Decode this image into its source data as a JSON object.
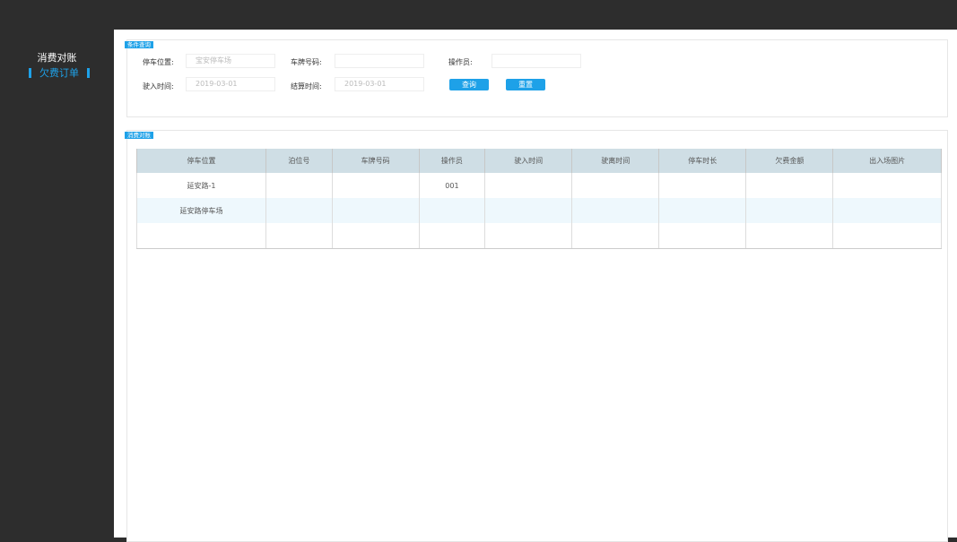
{
  "sidebar": {
    "title": "消费对账",
    "active_item": "欠费订单",
    "accent": "#1ea1e8"
  },
  "query": {
    "section_label": "条件查询",
    "parking_location": {
      "label": "停车位置:",
      "placeholder": "宝安停车场"
    },
    "plate": {
      "label": "车牌号码:",
      "value": ""
    },
    "operator": {
      "label": "操作员:",
      "value": ""
    },
    "enter_time": {
      "label": "驶入时间:",
      "placeholder": "2019-03-01"
    },
    "settle_time": {
      "label": "结算时间:",
      "placeholder": "2019-03-01"
    },
    "search_label": "查询",
    "reset_label": "重置"
  },
  "results": {
    "section_label": "消费对账",
    "columns": [
      "停车位置",
      "泊位号",
      "车牌号码",
      "操作员",
      "驶入时间",
      "驶离时间",
      "停车时长",
      "欠费金额",
      "出入场图片"
    ],
    "rows": [
      [
        "延安路-1",
        "",
        "",
        "001",
        "",
        "",
        "",
        "",
        ""
      ],
      [
        "延安路停车场",
        "",
        "",
        "",
        "",
        "",
        "",
        "",
        ""
      ],
      [
        "",
        "",
        "",
        "",
        "",
        "",
        "",
        "",
        ""
      ]
    ]
  }
}
